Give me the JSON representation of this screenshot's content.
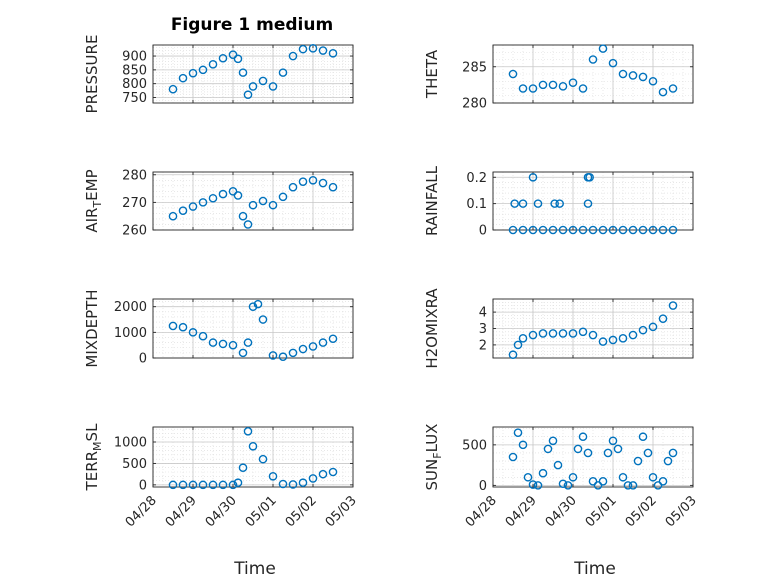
{
  "figure_title": "Figure 1 medium",
  "colors": {
    "marker": "#0072BD",
    "axis": "#262626",
    "grid": "#d9d9d9"
  },
  "chart_data": [
    {
      "type": "scatter",
      "ylabel": "PRESSURE",
      "ylim": [
        730,
        940
      ],
      "yticks": [
        750,
        800,
        850,
        900
      ],
      "xlim": [
        "04/28",
        "05/03"
      ],
      "grid": true,
      "x": [
        "04/28 12:00",
        "04/28 18:00",
        "04/29 00:00",
        "04/29 06:00",
        "04/29 12:00",
        "04/29 18:00",
        "04/30 00:00",
        "04/30 03:00",
        "04/30 06:00",
        "04/30 09:00",
        "04/30 12:00",
        "04/30 18:00",
        "05/01 00:00",
        "05/01 06:00",
        "05/01 12:00",
        "05/01 18:00",
        "05/02 00:00",
        "05/02 06:00",
        "05/02 12:00"
      ],
      "y": [
        780,
        820,
        838,
        850,
        870,
        892,
        905,
        890,
        840,
        760,
        790,
        810,
        790,
        840,
        900,
        925,
        928,
        920,
        910
      ]
    },
    {
      "type": "scatter",
      "ylabel": "THETA",
      "ylim": [
        280,
        288
      ],
      "yticks": [
        280,
        285
      ],
      "xlim": [
        "04/28",
        "05/03"
      ],
      "grid": true,
      "x": [
        "04/28 12:00",
        "04/28 18:00",
        "04/29 00:00",
        "04/29 06:00",
        "04/29 12:00",
        "04/29 18:00",
        "04/30 00:00",
        "04/30 06:00",
        "04/30 12:00",
        "04/30 18:00",
        "05/01 00:00",
        "05/01 06:00",
        "05/01 12:00",
        "05/01 18:00",
        "05/02 00:00",
        "05/02 06:00",
        "05/02 12:00"
      ],
      "y": [
        284,
        282,
        282,
        282.5,
        282.5,
        282.3,
        282.8,
        282,
        286,
        287.5,
        285.5,
        284,
        283.8,
        283.6,
        283,
        281.5,
        282
      ]
    },
    {
      "type": "scatter",
      "ylabel": "AIR_TEMP",
      "ylim": [
        260,
        281
      ],
      "yticks": [
        260,
        270,
        280
      ],
      "xlim": [
        "04/28",
        "05/03"
      ],
      "grid": true,
      "x": [
        "04/28 12:00",
        "04/28 18:00",
        "04/29 00:00",
        "04/29 06:00",
        "04/29 12:00",
        "04/29 18:00",
        "04/30 00:00",
        "04/30 03:00",
        "04/30 06:00",
        "04/30 09:00",
        "04/30 12:00",
        "04/30 18:00",
        "05/01 00:00",
        "05/01 06:00",
        "05/01 12:00",
        "05/01 18:00",
        "05/02 00:00",
        "05/02 06:00",
        "05/02 12:00"
      ],
      "y": [
        265,
        267,
        268.5,
        270,
        271.5,
        273,
        274,
        272.5,
        265,
        262,
        269,
        270.5,
        269,
        272,
        275.5,
        277.5,
        278,
        277,
        275.5
      ]
    },
    {
      "type": "scatter",
      "ylabel": "RAINFALL",
      "ylim": [
        0,
        0.22
      ],
      "yticks": [
        0,
        0.1,
        0.2
      ],
      "xlim": [
        "04/28",
        "05/03"
      ],
      "grid": true,
      "x": [
        "04/28 12:00",
        "04/28 18:00",
        "04/29 00:00",
        "04/29 06:00",
        "04/29 12:00",
        "04/29 18:00",
        "04/30 00:00",
        "04/30 06:00",
        "04/30 12:00",
        "04/30 18:00",
        "05/01 00:00",
        "05/01 06:00",
        "05/01 12:00",
        "05/01 18:00",
        "05/02 00:00",
        "05/02 06:00",
        "05/02 12:00",
        "04/28 13:00",
        "04/28 18:00",
        "04/29 00:00",
        "04/29 03:00",
        "04/29 13:00",
        "04/29 16:00",
        "04/30 09:00",
        "04/30 10:00",
        "04/30 09:00"
      ],
      "y": [
        0,
        0,
        0,
        0,
        0,
        0,
        0,
        0,
        0,
        0,
        0,
        0,
        0,
        0,
        0,
        0,
        0,
        0.1,
        0.1,
        0.2,
        0.1,
        0.1,
        0.1,
        0.2,
        0.2,
        0.1
      ]
    },
    {
      "type": "scatter",
      "ylabel": "MIXDEPTH",
      "ylim": [
        0,
        2300
      ],
      "yticks": [
        0,
        1000,
        2000
      ],
      "xlim": [
        "04/28",
        "05/03"
      ],
      "grid": true,
      "x": [
        "04/28 12:00",
        "04/28 18:00",
        "04/29 00:00",
        "04/29 06:00",
        "04/29 12:00",
        "04/29 18:00",
        "04/30 00:00",
        "04/30 06:00",
        "04/30 09:00",
        "04/30 12:00",
        "04/30 15:00",
        "04/30 18:00",
        "05/01 00:00",
        "05/01 06:00",
        "05/01 12:00",
        "05/01 18:00",
        "05/02 00:00",
        "05/02 06:00",
        "05/02 12:00"
      ],
      "y": [
        1250,
        1200,
        1000,
        850,
        600,
        550,
        500,
        200,
        600,
        2000,
        2100,
        1500,
        100,
        50,
        200,
        350,
        450,
        600,
        750
      ]
    },
    {
      "type": "scatter",
      "ylabel": "H2OMIXRA",
      "ylim": [
        1.2,
        4.8
      ],
      "yticks": [
        2,
        3,
        4
      ],
      "xlim": [
        "04/28",
        "05/03"
      ],
      "grid": true,
      "x": [
        "04/28 12:00",
        "04/28 15:00",
        "04/28 18:00",
        "04/29 00:00",
        "04/29 06:00",
        "04/29 12:00",
        "04/29 18:00",
        "04/30 00:00",
        "04/30 06:00",
        "04/30 12:00",
        "04/30 18:00",
        "05/01 00:00",
        "05/01 06:00",
        "05/01 12:00",
        "05/01 18:00",
        "05/02 00:00",
        "05/02 06:00",
        "05/02 12:00"
      ],
      "y": [
        1.4,
        2.0,
        2.4,
        2.6,
        2.7,
        2.7,
        2.7,
        2.7,
        2.8,
        2.6,
        2.2,
        2.3,
        2.4,
        2.6,
        2.9,
        3.1,
        3.6,
        4.4
      ]
    },
    {
      "type": "scatter",
      "ylabel": "TERR_MSL",
      "ylim": [
        -50,
        1350
      ],
      "yticks": [
        0,
        500,
        1000
      ],
      "xlim": [
        "04/28",
        "05/03"
      ],
      "xticks": [
        "04/28",
        "04/29",
        "04/30",
        "05/01",
        "05/02",
        "05/03"
      ],
      "xlabel": "Time",
      "grid": true,
      "x": [
        "04/28 12:00",
        "04/28 18:00",
        "04/29 00:00",
        "04/29 06:00",
        "04/29 12:00",
        "04/29 18:00",
        "04/30 00:00",
        "04/30 03:00",
        "04/30 06:00",
        "04/30 09:00",
        "04/30 12:00",
        "04/30 18:00",
        "05/01 00:00",
        "05/01 06:00",
        "05/01 12:00",
        "05/01 18:00",
        "05/02 00:00",
        "05/02 06:00",
        "05/02 12:00"
      ],
      "y": [
        0,
        0,
        0,
        0,
        0,
        0,
        0,
        50,
        400,
        1250,
        900,
        600,
        200,
        20,
        10,
        50,
        150,
        250,
        300
      ]
    },
    {
      "type": "scatter",
      "ylabel": "SUN_FLUX",
      "ylim": [
        -20,
        720
      ],
      "yticks": [
        0,
        500
      ],
      "xlim": [
        "04/28",
        "05/03"
      ],
      "xticks": [
        "04/28",
        "04/29",
        "04/30",
        "05/01",
        "05/02",
        "05/03"
      ],
      "xlabel": "Time",
      "grid": true,
      "x": [
        "04/28 12:00",
        "04/28 15:00",
        "04/28 18:00",
        "04/28 21:00",
        "04/29 00:00",
        "04/29 03:00",
        "04/29 06:00",
        "04/29 09:00",
        "04/29 12:00",
        "04/29 15:00",
        "04/29 18:00",
        "04/29 21:00",
        "04/30 00:00",
        "04/30 03:00",
        "04/30 06:00",
        "04/30 09:00",
        "04/30 12:00",
        "04/30 15:00",
        "04/30 18:00",
        "04/30 21:00",
        "05/01 00:00",
        "05/01 03:00",
        "05/01 06:00",
        "05/01 09:00",
        "05/01 12:00",
        "05/01 15:00",
        "05/01 18:00",
        "05/01 21:00",
        "05/02 00:00",
        "05/02 03:00",
        "05/02 06:00",
        "05/02 09:00",
        "05/02 12:00"
      ],
      "y": [
        350,
        650,
        500,
        100,
        10,
        0,
        150,
        450,
        550,
        250,
        20,
        0,
        100,
        450,
        600,
        400,
        50,
        0,
        50,
        400,
        550,
        450,
        100,
        0,
        0,
        300,
        600,
        400,
        100,
        0,
        50,
        300,
        400
      ]
    }
  ]
}
